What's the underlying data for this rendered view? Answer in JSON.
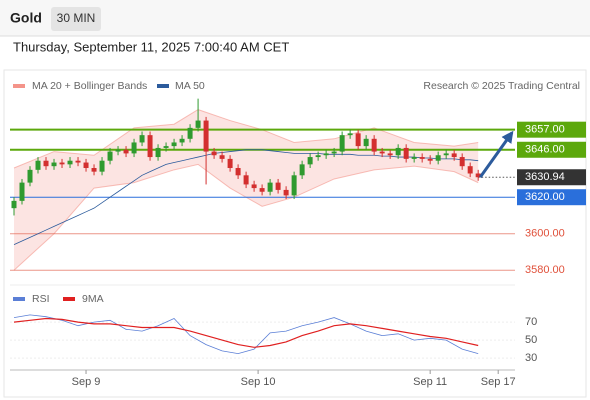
{
  "header": {
    "symbol": "Gold",
    "interval": "30 MIN",
    "subtitle": "Thursday, September 11, 2025 7:00:40 AM CET",
    "credit": "Research © 2025 Trading Central"
  },
  "chart_data": [
    {
      "type": "candlestick",
      "xlim": [
        -0.5,
        62.6
      ],
      "ylim": [
        3573,
        3676
      ],
      "up_color": "#2f9a2f",
      "down_color": "#d32f2f",
      "candles": {
        "open": [
          3614,
          3618,
          3628,
          3635,
          3640,
          3637,
          3639,
          3638,
          3640,
          3639,
          3636,
          3634,
          3640,
          3645,
          3646,
          3644,
          3650,
          3654,
          3642,
          3647,
          3648,
          3650,
          3652,
          3658,
          3662,
          3645,
          3643,
          3641,
          3636,
          3632,
          3627,
          3625,
          3623,
          3628,
          3624,
          3621,
          3632,
          3638,
          3642,
          3643,
          3644,
          3645,
          3654,
          3655,
          3648,
          3652,
          3645,
          3644,
          3643,
          3647,
          3641,
          3642,
          3641,
          3640,
          3643,
          3644,
          3642,
          3637,
          3633
        ],
        "high": [
          3620,
          3630,
          3637,
          3642,
          3642,
          3641,
          3641,
          3642,
          3642,
          3641,
          3638,
          3642,
          3647,
          3648,
          3648,
          3652,
          3656,
          3656,
          3649,
          3650,
          3652,
          3654,
          3660,
          3674,
          3664,
          3647,
          3645,
          3643,
          3638,
          3634,
          3629,
          3627,
          3630,
          3630,
          3626,
          3634,
          3640,
          3644,
          3645,
          3646,
          3647,
          3656,
          3657,
          3657,
          3654,
          3654,
          3647,
          3646,
          3649,
          3649,
          3644,
          3644,
          3643,
          3645,
          3646,
          3646,
          3644,
          3639,
          3635
        ],
        "low": [
          3610,
          3616,
          3626,
          3633,
          3635,
          3635,
          3636,
          3636,
          3637,
          3634,
          3632,
          3632,
          3638,
          3643,
          3642,
          3642,
          3648,
          3640,
          3640,
          3645,
          3646,
          3648,
          3650,
          3656,
          3627,
          3641,
          3639,
          3634,
          3630,
          3625,
          3623,
          3621,
          3621,
          3622,
          3619,
          3619,
          3630,
          3636,
          3640,
          3641,
          3642,
          3643,
          3652,
          3646,
          3646,
          3643,
          3642,
          3641,
          3641,
          3639,
          3639,
          3639,
          3638,
          3638,
          3641,
          3640,
          3635,
          3631,
          3629
        ],
        "close": [
          3618,
          3628,
          3635,
          3640,
          3637,
          3639,
          3638,
          3640,
          3639,
          3636,
          3634,
          3640,
          3645,
          3646,
          3644,
          3650,
          3654,
          3642,
          3647,
          3648,
          3650,
          3652,
          3658,
          3662,
          3645,
          3643,
          3641,
          3636,
          3632,
          3627,
          3625,
          3623,
          3628,
          3624,
          3621,
          3632,
          3638,
          3642,
          3643,
          3644,
          3645,
          3654,
          3655,
          3648,
          3652,
          3645,
          3644,
          3643,
          3647,
          3641,
          3642,
          3641,
          3640,
          3643,
          3644,
          3642,
          3637,
          3633,
          3630.94
        ]
      },
      "bands": {
        "name": "MA 20 + Bollinger Bands",
        "color": "#f4948a",
        "x": [
          0,
          5,
          10,
          15,
          20,
          23,
          27,
          31,
          35,
          40,
          45,
          50,
          55,
          58
        ],
        "upper": [
          3636,
          3645,
          3643,
          3658,
          3660,
          3668,
          3662,
          3657,
          3650,
          3652,
          3658,
          3650,
          3648,
          3650
        ],
        "lower": [
          3580,
          3600,
          3625,
          3628,
          3635,
          3638,
          3625,
          3615,
          3620,
          3630,
          3635,
          3637,
          3634,
          3628
        ]
      },
      "ma": {
        "name": "MA 50",
        "color": "#2c5b9c",
        "values": [
          3594,
          3596,
          3598,
          3600,
          3602,
          3604,
          3606,
          3608,
          3610,
          3612,
          3614,
          3617,
          3620,
          3623,
          3626,
          3629,
          3632,
          3634,
          3636,
          3638,
          3639,
          3640,
          3641,
          3642,
          3643,
          3644,
          3644.5,
          3645,
          3645.5,
          3646,
          3646,
          3646,
          3645.5,
          3645,
          3644.5,
          3644,
          3644,
          3644,
          3644,
          3643.5,
          3643.5,
          3643.5,
          3643.5,
          3643,
          3643,
          3643,
          3642.5,
          3642.5,
          3642,
          3642,
          3642,
          3641.5,
          3641.5,
          3641,
          3641,
          3641,
          3640.5,
          3640.5,
          3640
        ]
      },
      "levels": [
        {
          "value": 3657,
          "label": "3657.00",
          "color": "#5ca80c",
          "box": true
        },
        {
          "value": 3646,
          "label": "3646.00",
          "color": "#5ca80c",
          "box": true
        },
        {
          "value": 3630.94,
          "label": "3630.94",
          "color": "#333333",
          "box": true
        },
        {
          "value": 3620,
          "label": "3620.00",
          "color": "#2a6fdb",
          "box": true
        },
        {
          "value": 3600,
          "label": "3600.00",
          "color": "#e0503a",
          "box": false
        },
        {
          "value": 3580,
          "label": "3580.00",
          "color": "#e0503a",
          "box": false
        }
      ],
      "arrow_color": "#2c5b9c"
    },
    {
      "type": "line",
      "xlim": [
        -0.5,
        62.6
      ],
      "ylim": [
        19,
        89
      ],
      "yticks": [
        70,
        50,
        30
      ],
      "xticks": [
        {
          "value": 9,
          "label": "Sep 9"
        },
        {
          "value": 30.5,
          "label": "Sep 10"
        },
        {
          "value": 52,
          "label": "Sep 11"
        },
        {
          "value": 60.5,
          "label": "Sep 17"
        }
      ],
      "series": [
        {
          "name": "RSI",
          "color": "#5b7fd6",
          "x": [
            0,
            2,
            4,
            6,
            8,
            10,
            12,
            14,
            16,
            18,
            20,
            22,
            24,
            26,
            28,
            30,
            32,
            34,
            36,
            38,
            40,
            42,
            44,
            46,
            48,
            50,
            52,
            54,
            56,
            58
          ],
          "values": [
            75,
            78,
            76,
            72,
            66,
            70,
            72,
            62,
            60,
            66,
            74,
            55,
            45,
            38,
            35,
            40,
            58,
            60,
            66,
            70,
            75,
            68,
            60,
            55,
            57,
            50,
            52,
            50,
            40,
            35
          ]
        },
        {
          "name": "9MA",
          "color": "#e02020",
          "x": [
            0,
            2,
            4,
            6,
            8,
            10,
            12,
            14,
            16,
            18,
            20,
            22,
            24,
            26,
            28,
            30,
            32,
            34,
            36,
            38,
            40,
            42,
            44,
            46,
            48,
            50,
            52,
            54,
            56,
            58
          ],
          "values": [
            70,
            72,
            74,
            73,
            70,
            68,
            68,
            66,
            64,
            64,
            64,
            60,
            55,
            50,
            45,
            42,
            44,
            48,
            55,
            60,
            66,
            68,
            66,
            63,
            60,
            57,
            54,
            52,
            48,
            44
          ]
        }
      ]
    }
  ]
}
